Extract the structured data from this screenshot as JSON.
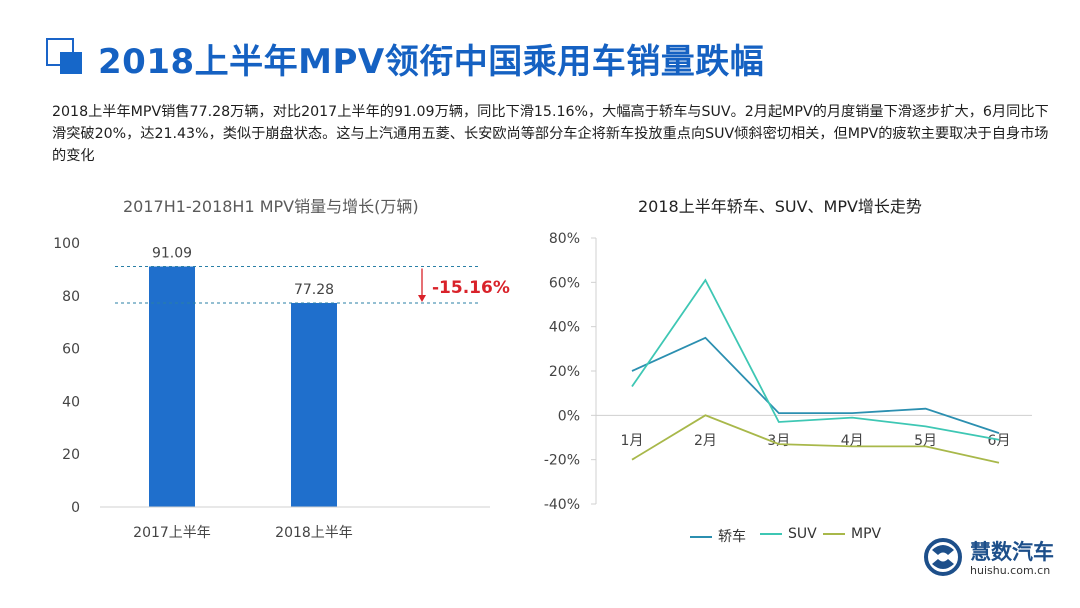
{
  "title": "2018上半年MPV领衔中国乘用车销量跌幅",
  "summary": "2018上半年MPV销售77.28万辆，对比2017上半年的91.09万辆，同比下滑15.16%，大幅高于轿车与SUV。2月起MPV的月度销量下滑逐步扩大，6月同比下滑突破20%，达21.43%，类似于崩盘状态。这与上汽通用五菱、长安欧尚等部分车企将新车投放重点向SUV倾斜密切相关，但MPV的疲软主要取决于自身市场的变化",
  "brand": {
    "name": "慧数汽车",
    "url": "huishu.com.cn"
  },
  "colors": {
    "title": "#1561c2",
    "bar": "#1f6fcc",
    "sedan": "#2b8fb0",
    "suv": "#3ec7b4",
    "mpv": "#a8b84a",
    "change": "#d9222a"
  },
  "chart_data": [
    {
      "type": "bar",
      "title": "2017H1-2018H1 MPV销量与增长(万辆)",
      "categories": [
        "2017上半年",
        "2018上半年"
      ],
      "values": [
        91.09,
        77.28
      ],
      "value_labels": [
        "91.09",
        "77.28"
      ],
      "change_label": "-15.16%",
      "yticks": [
        0,
        20,
        40,
        60,
        80,
        100
      ],
      "ylim": [
        0,
        100
      ]
    },
    {
      "type": "line",
      "title": "2018上半年轿车、SUV、MPV增长走势",
      "categories": [
        "1月",
        "2月",
        "3月",
        "4月",
        "5月",
        "6月"
      ],
      "ylim": [
        -40,
        80
      ],
      "yticks": [
        -40,
        -20,
        0,
        20,
        40,
        60,
        80
      ],
      "ytick_labels": [
        "-40%",
        "-20%",
        "0%",
        "20%",
        "40%",
        "60%",
        "80%"
      ],
      "series": [
        {
          "name": "轿车",
          "values": [
            20,
            35,
            1,
            1,
            3,
            -8
          ]
        },
        {
          "name": "SUV",
          "values": [
            13,
            61,
            -3,
            -1,
            -5,
            -11
          ]
        },
        {
          "name": "MPV",
          "values": [
            -20,
            0,
            -13,
            -14,
            -14,
            -21.43
          ]
        }
      ]
    }
  ]
}
